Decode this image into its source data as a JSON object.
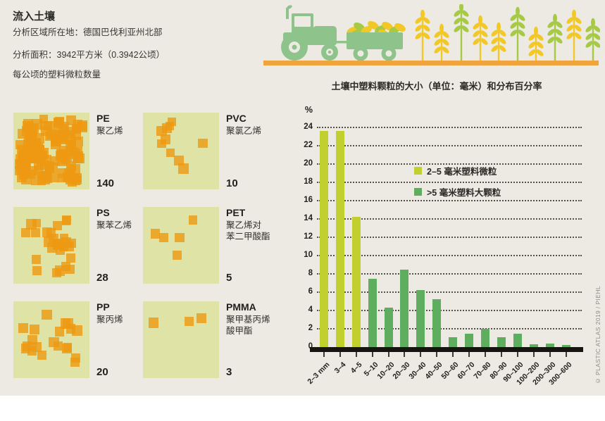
{
  "header": {
    "title": "流入土壤",
    "subtitle": "分析区域所在地：德国巴伐利亚州北部",
    "area_line": "分析面积：3942平方米（0.3942公顷）",
    "per_hectare_line": "每公顷的塑料微粒数量"
  },
  "plastics": [
    {
      "abbr": "PE",
      "name": "聚乙烯",
      "count": 140
    },
    {
      "abbr": "PVC",
      "name": "聚氯乙烯",
      "count": 10
    },
    {
      "abbr": "PS",
      "name": "聚苯乙烯",
      "count": 28
    },
    {
      "abbr": "PET",
      "name": "聚乙烯对\n苯二甲酸酯",
      "count": 5
    },
    {
      "abbr": "PP",
      "name": "聚丙烯",
      "count": 20
    },
    {
      "abbr": "PMMA",
      "name": "聚甲基丙烯\n酸甲酯",
      "count": 3
    }
  ],
  "chart_data": {
    "type": "bar",
    "title": "土壤中塑料颗粒的大小（单位：毫米）和分布百分率",
    "ylabel": "%",
    "ylim": [
      0,
      24
    ],
    "ytick_step": 2,
    "grid": true,
    "legend_position": "upper right",
    "categories": [
      "2–3 mm",
      "3–4",
      "4–5",
      "5–10",
      "10–20",
      "20–30",
      "30–40",
      "40–50",
      "50–60",
      "60–70",
      "70–80",
      "80–90",
      "90–100",
      "100–200",
      "200–300",
      "300–600"
    ],
    "values": [
      23.6,
      23.6,
      14.2,
      7.5,
      4.3,
      8.5,
      6.2,
      5.2,
      1.1,
      1.5,
      2.0,
      1.1,
      1.5,
      0.3,
      0.4,
      0.2
    ],
    "series_of_bar": [
      0,
      0,
      0,
      1,
      1,
      1,
      1,
      1,
      1,
      1,
      1,
      1,
      1,
      1,
      1,
      1
    ],
    "series": [
      {
        "name": "2–5 毫米塑料微粒",
        "color": "#C1D02F"
      },
      {
        "name": ">5 毫米塑料大颗粒",
        "color": "#5FAD5E"
      }
    ]
  },
  "credit": "© PLASTIC ATLAS 2019 / PIEHL",
  "colors": {
    "page_bg": "#EDEAE3",
    "tile_bg": "#DFE3A5",
    "particle_orange": "#EE9812",
    "ground_orange": "#EFA43E",
    "tractor_green": "#8EC38B",
    "wheat_yellow": "#F1C827",
    "wheat_green": "#A6CA45",
    "axis_black": "#151411"
  },
  "icons": {
    "tractor": "tractor-icon",
    "trailer": "trailer-icon",
    "wheat_field": "wheat-field-icon",
    "ground": "ground-line"
  }
}
